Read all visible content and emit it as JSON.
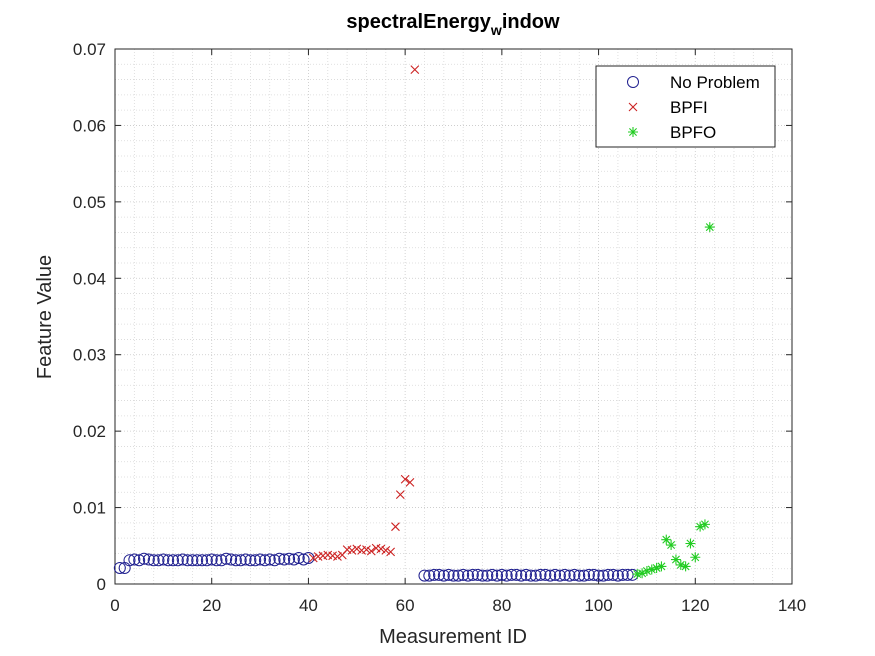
{
  "chart_data": {
    "type": "scatter",
    "title": "spectralEnergy",
    "title_subscript": "w",
    "title_suffix": "indow",
    "xlabel": "Measurement ID",
    "ylabel": "Feature Value",
    "xlim": [
      0,
      140
    ],
    "ylim": [
      0,
      0.07
    ],
    "xticks": [
      0,
      20,
      40,
      60,
      80,
      100,
      120,
      140
    ],
    "xtick_labels": [
      "0",
      "20",
      "40",
      "60",
      "80",
      "100",
      "120",
      "140"
    ],
    "yticks": [
      0,
      0.01,
      0.02,
      0.03,
      0.04,
      0.05,
      0.06,
      0.07
    ],
    "ytick_labels": [
      "0",
      "0.01",
      "0.02",
      "0.03",
      "0.04",
      "0.05",
      "0.06",
      "0.07"
    ],
    "grid": "on, with minor grid",
    "legend_position": "top-right",
    "series": [
      {
        "name": "No Problem",
        "marker": "circle",
        "color": "#1f1f8f",
        "x": [
          1,
          2,
          3,
          4,
          5,
          6,
          7,
          8,
          9,
          10,
          11,
          12,
          13,
          14,
          15,
          16,
          17,
          18,
          19,
          20,
          21,
          22,
          23,
          24,
          25,
          26,
          27,
          28,
          29,
          30,
          31,
          32,
          33,
          34,
          35,
          36,
          37,
          38,
          39,
          40,
          64,
          65,
          66,
          67,
          68,
          69,
          70,
          71,
          72,
          73,
          74,
          75,
          76,
          77,
          78,
          79,
          80,
          81,
          82,
          83,
          84,
          85,
          86,
          87,
          88,
          89,
          90,
          91,
          92,
          93,
          94,
          95,
          96,
          97,
          98,
          99,
          100,
          101,
          102,
          103,
          104,
          105,
          106,
          107
        ],
        "y": [
          0.0021,
          0.0021,
          0.0031,
          0.0032,
          0.0031,
          0.0033,
          0.0032,
          0.0031,
          0.0031,
          0.0032,
          0.0031,
          0.0031,
          0.0031,
          0.0032,
          0.0031,
          0.0031,
          0.0031,
          0.0031,
          0.0031,
          0.0032,
          0.0031,
          0.0031,
          0.0033,
          0.0032,
          0.0031,
          0.0031,
          0.0032,
          0.0031,
          0.0031,
          0.0032,
          0.0031,
          0.0032,
          0.0031,
          0.0033,
          0.0032,
          0.0033,
          0.0032,
          0.0034,
          0.0032,
          0.0034,
          0.0011,
          0.0011,
          0.0012,
          0.0012,
          0.0011,
          0.0012,
          0.0011,
          0.0011,
          0.0012,
          0.0011,
          0.0012,
          0.0012,
          0.0011,
          0.0011,
          0.0012,
          0.0011,
          0.0012,
          0.0011,
          0.0012,
          0.0012,
          0.0011,
          0.0012,
          0.0011,
          0.0011,
          0.0012,
          0.0012,
          0.0011,
          0.0012,
          0.0011,
          0.0012,
          0.0011,
          0.0012,
          0.0011,
          0.0011,
          0.0012,
          0.0012,
          0.0011,
          0.0011,
          0.0012,
          0.0012,
          0.0011,
          0.0012,
          0.0012,
          0.0012
        ]
      },
      {
        "name": "BPFI",
        "marker": "x",
        "color": "#cc2222",
        "x": [
          41,
          42,
          43,
          44,
          45,
          46,
          47,
          48,
          49,
          50,
          51,
          52,
          53,
          54,
          55,
          56,
          57,
          58,
          59,
          60,
          61,
          62
        ],
        "y": [
          0.0034,
          0.0036,
          0.0037,
          0.0038,
          0.0037,
          0.0036,
          0.0038,
          0.0045,
          0.0044,
          0.0046,
          0.0044,
          0.0045,
          0.0043,
          0.0047,
          0.0046,
          0.0044,
          0.0042,
          0.0075,
          0.0117,
          0.0137,
          0.0133,
          0.0673
        ]
      },
      {
        "name": "BPFO",
        "marker": "star",
        "color": "#22cc22",
        "x": [
          108,
          109,
          110,
          111,
          112,
          113,
          114,
          115,
          116,
          117,
          118,
          119,
          120,
          121,
          122,
          123
        ],
        "y": [
          0.0013,
          0.0014,
          0.0017,
          0.0019,
          0.0021,
          0.0023,
          0.0058,
          0.0051,
          0.0032,
          0.0025,
          0.0023,
          0.0053,
          0.0035,
          0.0075,
          0.0078,
          0.0467
        ]
      }
    ]
  }
}
